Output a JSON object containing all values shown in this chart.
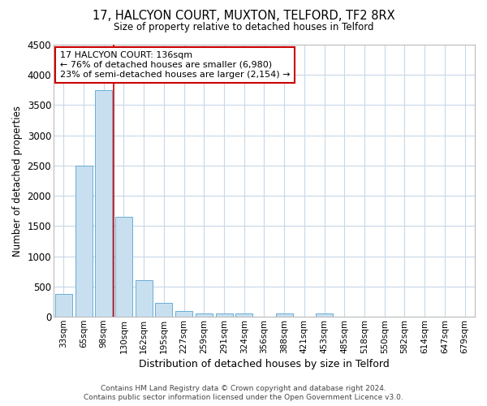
{
  "title_line1": "17, HALCYON COURT, MUXTON, TELFORD, TF2 8RX",
  "title_line2": "Size of property relative to detached houses in Telford",
  "xlabel": "Distribution of detached houses by size in Telford",
  "ylabel": "Number of detached properties",
  "bar_color": "#c8dff0",
  "bar_edge_color": "#6aaed6",
  "grid_color": "#c8d8e8",
  "categories": [
    "33sqm",
    "65sqm",
    "98sqm",
    "130sqm",
    "162sqm",
    "195sqm",
    "227sqm",
    "259sqm",
    "291sqm",
    "324sqm",
    "356sqm",
    "388sqm",
    "421sqm",
    "453sqm",
    "485sqm",
    "518sqm",
    "550sqm",
    "582sqm",
    "614sqm",
    "647sqm",
    "679sqm"
  ],
  "values": [
    375,
    2500,
    3750,
    1650,
    600,
    225,
    100,
    60,
    55,
    50,
    0,
    55,
    0,
    50,
    0,
    0,
    0,
    0,
    0,
    0,
    0
  ],
  "ylim": [
    0,
    4500
  ],
  "yticks": [
    0,
    500,
    1000,
    1500,
    2000,
    2500,
    3000,
    3500,
    4000,
    4500
  ],
  "red_line_x": 2.5,
  "marker_color": "#cc0000",
  "annotation_title": "17 HALCYON COURT: 136sqm",
  "annotation_line2": "← 76% of detached houses are smaller (6,980)",
  "annotation_line3": "23% of semi-detached houses are larger (2,154) →",
  "annotation_box_color": "#cc0000",
  "footer_line1": "Contains HM Land Registry data © Crown copyright and database right 2024.",
  "footer_line2": "Contains public sector information licensed under the Open Government Licence v3.0.",
  "bg_color": "#ffffff",
  "plot_bg_color": "#ffffff"
}
